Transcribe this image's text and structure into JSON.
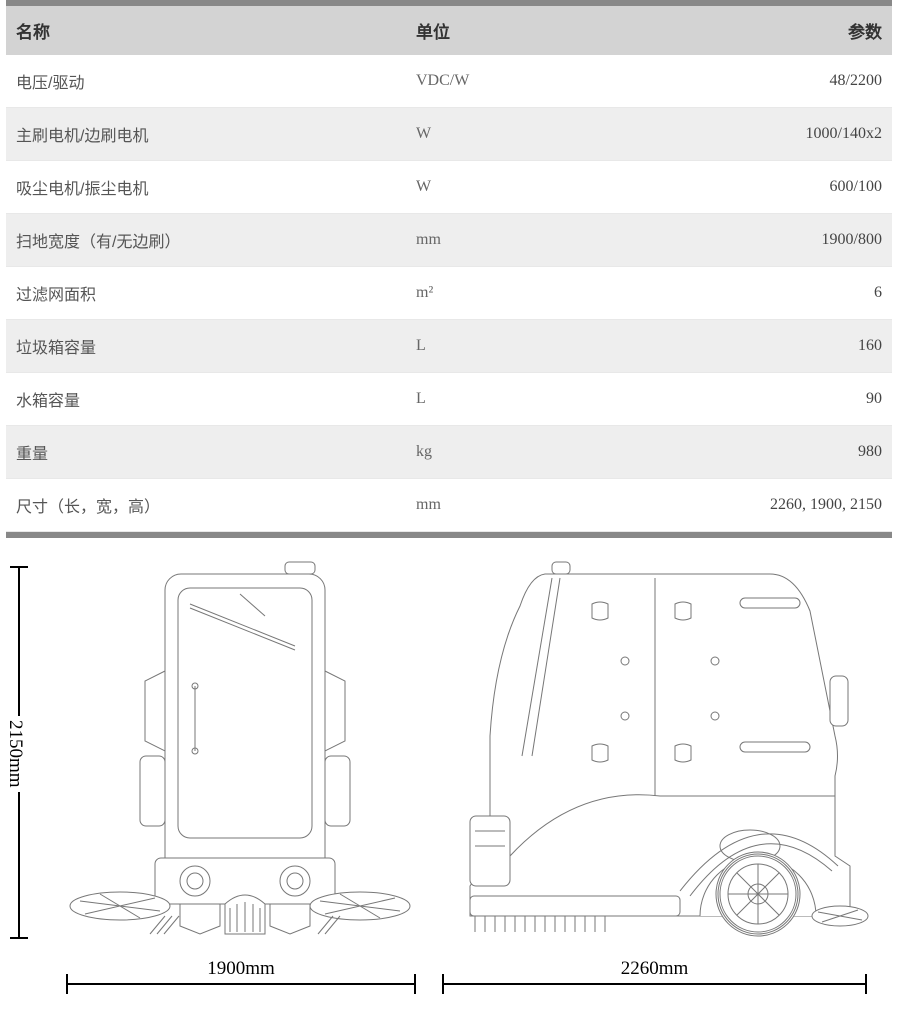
{
  "table": {
    "headers": {
      "name": "名称",
      "unit": "单位",
      "param": "参数"
    },
    "rows": [
      {
        "name": "电压/驱动",
        "unit": "VDC/W",
        "param": "48/2200",
        "shade": false
      },
      {
        "name": "主刷电机/边刷电机",
        "unit": "W",
        "param": "1000/140x2",
        "shade": true
      },
      {
        "name": "吸尘电机/振尘电机",
        "unit": "W",
        "param": "600/100",
        "shade": false
      },
      {
        "name": "扫地宽度（有/无边刷）",
        "unit": "mm",
        "param": "1900/800",
        "shade": true
      },
      {
        "name": "过滤网面积",
        "unit": "m²",
        "param": "6",
        "shade": false
      },
      {
        "name": "垃圾箱容量",
        "unit": "L",
        "param": "160",
        "shade": true
      },
      {
        "name": "水箱容量",
        "unit": "L",
        "param": "90",
        "shade": false
      },
      {
        "name": "重量",
        "unit": "kg",
        "param": "980",
        "shade": true
      },
      {
        "name": "尺寸（长，宽，高）",
        "unit": "mm",
        "param": "2260, 1900, 2150",
        "shade": false
      }
    ]
  },
  "dimensions": {
    "height": "2150mm",
    "width_front": "1900mm",
    "width_side": "2260mm"
  },
  "style": {
    "divider_color": "#888888",
    "header_bg": "#d3d3d3",
    "shade_bg": "#eeeeee",
    "text_color": "#444444",
    "line_color": "#777777"
  }
}
